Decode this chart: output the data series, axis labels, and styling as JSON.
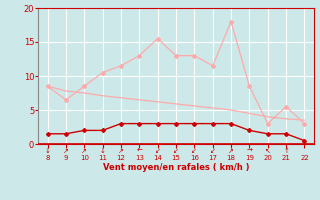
{
  "x": [
    8,
    9,
    10,
    11,
    12,
    13,
    14,
    15,
    16,
    17,
    18,
    19,
    20,
    21,
    22
  ],
  "rafales": [
    8.5,
    6.5,
    8.5,
    10.5,
    11.5,
    13.0,
    15.5,
    13.0,
    13.0,
    11.5,
    18.0,
    8.5,
    3.0,
    5.5,
    3.0
  ],
  "trend": [
    8.5,
    7.8,
    7.5,
    7.1,
    6.8,
    6.5,
    6.2,
    5.9,
    5.6,
    5.3,
    5.0,
    4.5,
    4.0,
    3.7,
    3.5
  ],
  "vent_moyen": [
    1.5,
    1.5,
    2.0,
    2.0,
    3.0,
    3.0,
    3.0,
    3.0,
    3.0,
    3.0,
    3.0,
    2.0,
    1.5,
    1.5,
    0.5
  ],
  "color_rafales": "#ffaaaa",
  "color_trend": "#ffaaaa",
  "color_vent": "#cc0000",
  "bg_color": "#cce8e8",
  "grid_color": "#ffffff",
  "xlabel": "Vent moyen/en rafales ( km/h )",
  "xlabel_color": "#cc0000",
  "tick_color": "#cc0000",
  "ylim": [
    0,
    20
  ],
  "xlim": [
    7.5,
    22.5
  ],
  "yticks": [
    0,
    5,
    10,
    15,
    20
  ],
  "wind_dirs": [
    "↓",
    "↗",
    "↗",
    "↓",
    "↗",
    "←",
    "↙",
    "↙",
    "↙",
    "↙",
    "↗",
    "→",
    "↖",
    "↑",
    ""
  ]
}
